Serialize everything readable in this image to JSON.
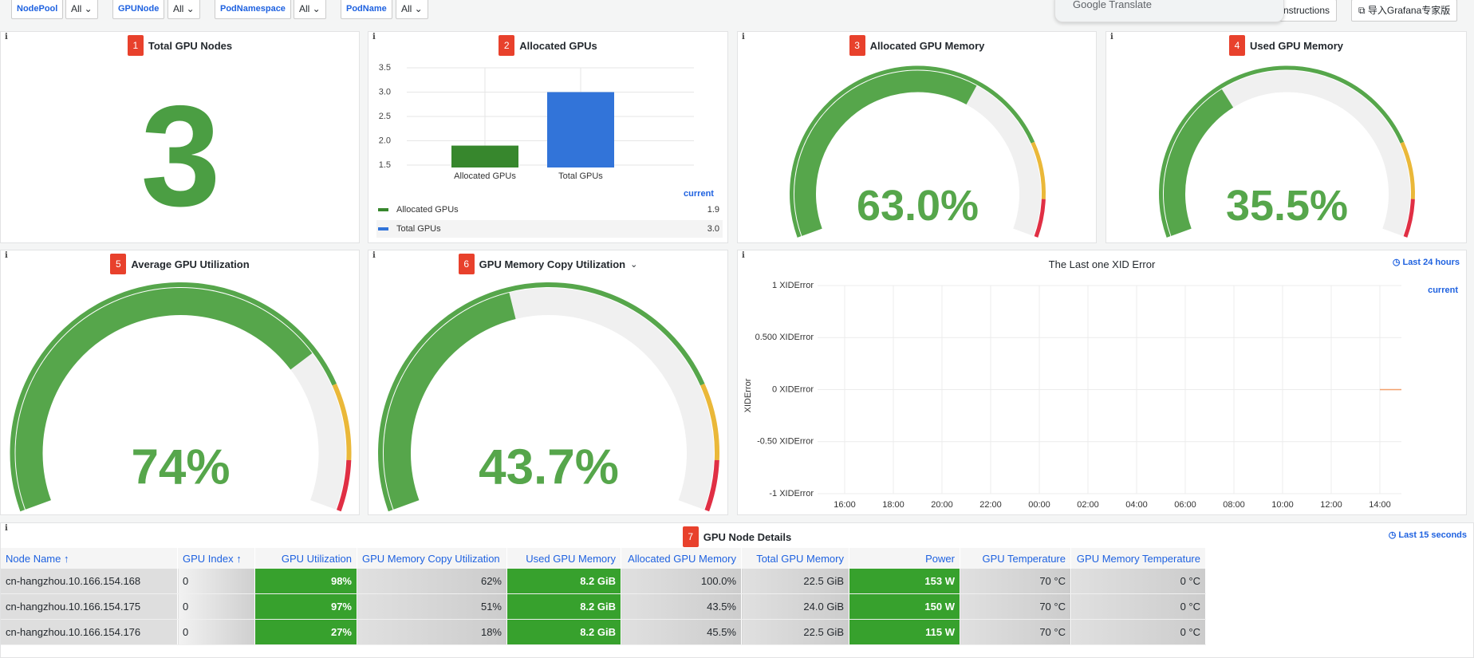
{
  "filters": [
    {
      "label": "NodePool",
      "value": "All"
    },
    {
      "label": "GPUNode",
      "value": "All"
    },
    {
      "label": "PodNamespace",
      "value": "All"
    },
    {
      "label": "PodName",
      "value": "All"
    }
  ],
  "translate_popup": "Google Translate",
  "buttons": [
    "nstructions",
    "导入Grafana专家版"
  ],
  "panels": [
    {
      "badge": "1",
      "title": "Total GPU Nodes",
      "stat": "3"
    },
    {
      "badge": "2",
      "title": "Allocated GPUs",
      "chart_data": {
        "type": "bar",
        "categories": [
          "Allocated GPUs",
          "Total GPUs"
        ],
        "values": [
          1.9,
          3.0
        ],
        "value_labels": [
          "1.9",
          "3.0"
        ],
        "colors": [
          "#37872d",
          "#3274d9"
        ],
        "ylim": [
          1.45,
          3.5
        ],
        "yticks": [
          1.5,
          {
            "value": 2,
            "label": "2.0"
          },
          2.5,
          {
            "value": 3,
            "label": "3.0"
          },
          3.5
        ],
        "grid": true,
        "legend_header": "current"
      }
    },
    {
      "badge": "3",
      "title": "Allocated GPU Memory",
      "chart_data": {
        "type": "gauge",
        "values": [
          63.0
        ],
        "value_labels": [
          "63.0%"
        ],
        "ylim": [
          0,
          100
        ],
        "color": "#56a64b"
      }
    },
    {
      "badge": "4",
      "title": "Used GPU Memory",
      "chart_data": {
        "type": "gauge",
        "values": [
          35.5
        ],
        "value_labels": [
          "35.5%"
        ],
        "ylim": [
          0,
          100
        ],
        "color": "#56a64b"
      }
    },
    {
      "badge": "5",
      "title": "Average GPU Utilization",
      "chart_data": {
        "type": "gauge",
        "values": [
          74
        ],
        "value_labels": [
          "74%"
        ],
        "ylim": [
          0,
          100
        ],
        "color": "#56a64b"
      }
    },
    {
      "badge": "6",
      "title": "GPU Memory Copy Utilization",
      "chart_data": {
        "type": "gauge",
        "values": [
          43.7
        ],
        "value_labels": [
          "43.7%"
        ],
        "ylim": [
          0,
          100
        ],
        "color": "#56a64b"
      }
    },
    {
      "title": "The Last one XID Error",
      "time_range": "Last 24 hours",
      "chart_data": {
        "type": "line",
        "y_label": "XIDError",
        "legend_header": "current",
        "categories": [
          "16:00",
          "18:00",
          "20:00",
          "22:00",
          "00:00",
          "02:00",
          "04:00",
          "06:00",
          "08:00",
          "10:00",
          "12:00",
          "14:00"
        ],
        "series": [
          {
            "color": "#f2a06b",
            "values": [
              null,
              null,
              null,
              null,
              null,
              null,
              null,
              null,
              null,
              null,
              null,
              0
            ]
          }
        ],
        "ylim": [
          -1,
          1
        ],
        "yticks": [
          {
            "value": 1,
            "label": "1 XIDError"
          },
          {
            "value": 0.5,
            "label": "0.500 XIDError"
          },
          {
            "value": 0,
            "label": "0 XIDError"
          },
          {
            "value": -0.5,
            "label": "-0.50 XIDError"
          },
          {
            "value": -1,
            "label": "-1 XIDError"
          }
        ],
        "grid": true
      }
    }
  ],
  "table_panel": {
    "badge": "7",
    "title": "GPU Node Details",
    "time_range": "Last 15 seconds",
    "header": [
      "Node Name ↑",
      "GPU Index ↑",
      "GPU Utilization",
      "GPU Memory Copy Utilization",
      "Used GPU Memory",
      "Allocated GPU Memory",
      "Total GPU Memory",
      "Power",
      "GPU Temperature",
      "GPU Memory Temperature"
    ],
    "rows": [
      [
        "cn-hangzhou.10.166.154.168",
        "0",
        "98%",
        "62%",
        "8.2 GiB",
        "100.0%",
        "22.5 GiB",
        "153 W",
        "70 °C",
        "0 °C"
      ],
      [
        "cn-hangzhou.10.166.154.175",
        "0",
        "97%",
        "51%",
        "8.2 GiB",
        "43.5%",
        "24.0 GiB",
        "150 W",
        "70 °C",
        "0 °C"
      ],
      [
        "cn-hangzhou.10.166.154.176",
        "0",
        "27%",
        "18%",
        "8.2 GiB",
        "45.5%",
        "22.5 GiB",
        "115 W",
        "70 °C",
        "0 °C"
      ]
    ]
  }
}
